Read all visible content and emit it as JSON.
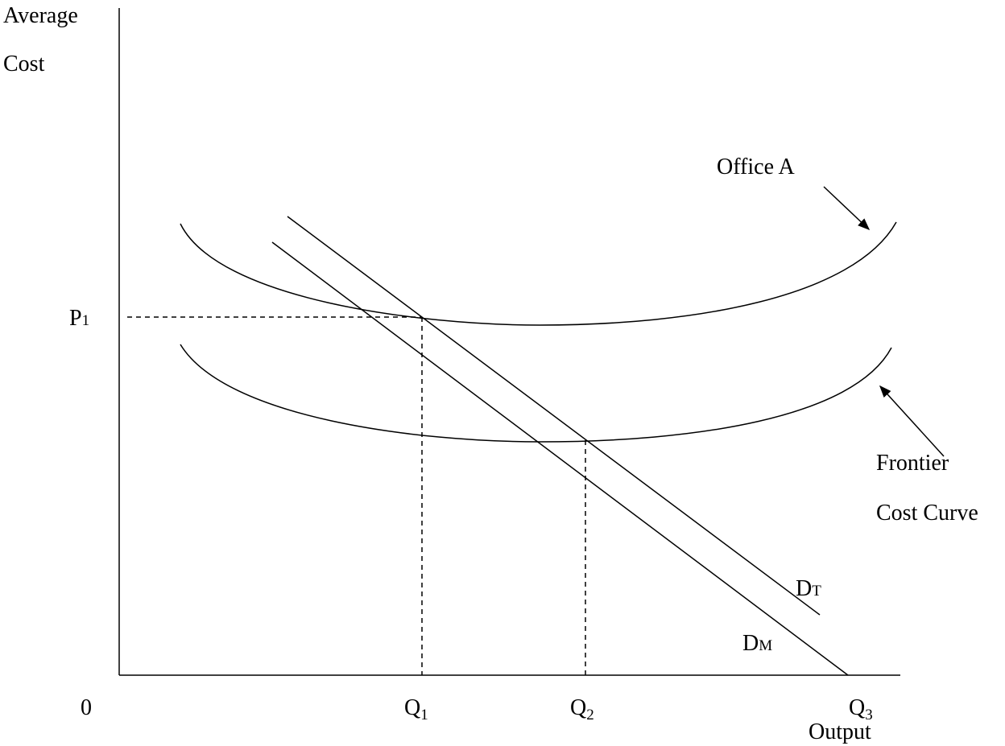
{
  "axes": {
    "y_label": [
      "Average",
      "Cost"
    ],
    "x_label": "Output",
    "origin": "0"
  },
  "labels": {
    "price": {
      "main": "P",
      "sub": "1"
    },
    "office_a": "Office A",
    "frontier": [
      "Frontier",
      "Cost Curve"
    ],
    "demand_total": {
      "main": "D",
      "sub": "T"
    },
    "demand_market": {
      "main": "D",
      "sub": "M"
    },
    "quantities": [
      {
        "main": "Q",
        "sub": "1"
      },
      {
        "main": "Q",
        "sub": "2"
      },
      {
        "main": "Q",
        "sub": "3"
      }
    ]
  }
}
